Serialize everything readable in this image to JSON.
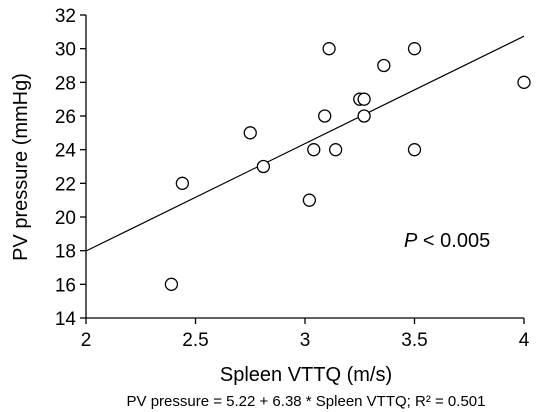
{
  "chart_data": {
    "type": "scatter",
    "title": "",
    "xlabel": "Spleen VTTQ (m/s)",
    "ylabel": "PV pressure (mmHg)",
    "xlim": [
      2,
      4
    ],
    "ylim": [
      14,
      32
    ],
    "xticks": [
      2,
      2.5,
      3,
      3.5,
      4
    ],
    "xtick_labels": [
      "2",
      "2.5",
      "3",
      "3.5",
      "4"
    ],
    "yticks": [
      14,
      16,
      18,
      20,
      22,
      24,
      26,
      28,
      30,
      32
    ],
    "ytick_labels": [
      "14",
      "16",
      "18",
      "20",
      "22",
      "24",
      "26",
      "28",
      "30",
      "32"
    ],
    "grid": false,
    "legend": "none",
    "series": [
      {
        "points": [
          [
            2.39,
            16
          ],
          [
            2.44,
            22
          ],
          [
            2.75,
            25
          ],
          [
            2.81,
            23
          ],
          [
            3.02,
            21
          ],
          [
            3.04,
            24
          ],
          [
            3.09,
            26
          ],
          [
            3.11,
            30
          ],
          [
            3.14,
            24
          ],
          [
            3.25,
            27
          ],
          [
            3.27,
            27
          ],
          [
            3.27,
            26
          ],
          [
            3.36,
            29
          ],
          [
            3.5,
            30
          ],
          [
            3.5,
            24
          ],
          [
            4.0,
            28
          ]
        ]
      }
    ],
    "regression": {
      "intercept": 5.22,
      "slope": 6.38
    },
    "annotation": {
      "italic": "P",
      "rest": " < 0.005"
    },
    "caption": "PV pressure = 5.22 + 6.38 * Spleen VTTQ; R² = 0.501"
  }
}
